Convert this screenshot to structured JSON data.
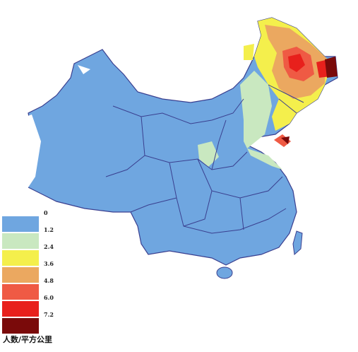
{
  "legend": {
    "title": "人数/平方公里",
    "items": [
      {
        "label": "0",
        "color": "#6fa6e0"
      },
      {
        "label": "1.2",
        "color": "#c9e8c0"
      },
      {
        "label": "2.4",
        "color": "#f4ef4c"
      },
      {
        "label": "3.6",
        "color": "#eba860"
      },
      {
        "label": "4.8",
        "color": "#ef5a44"
      },
      {
        "label": "6.0",
        "color": "#e8201c"
      },
      {
        "label": "7.2",
        "color": "#7a0a0a"
      }
    ]
  }
}
